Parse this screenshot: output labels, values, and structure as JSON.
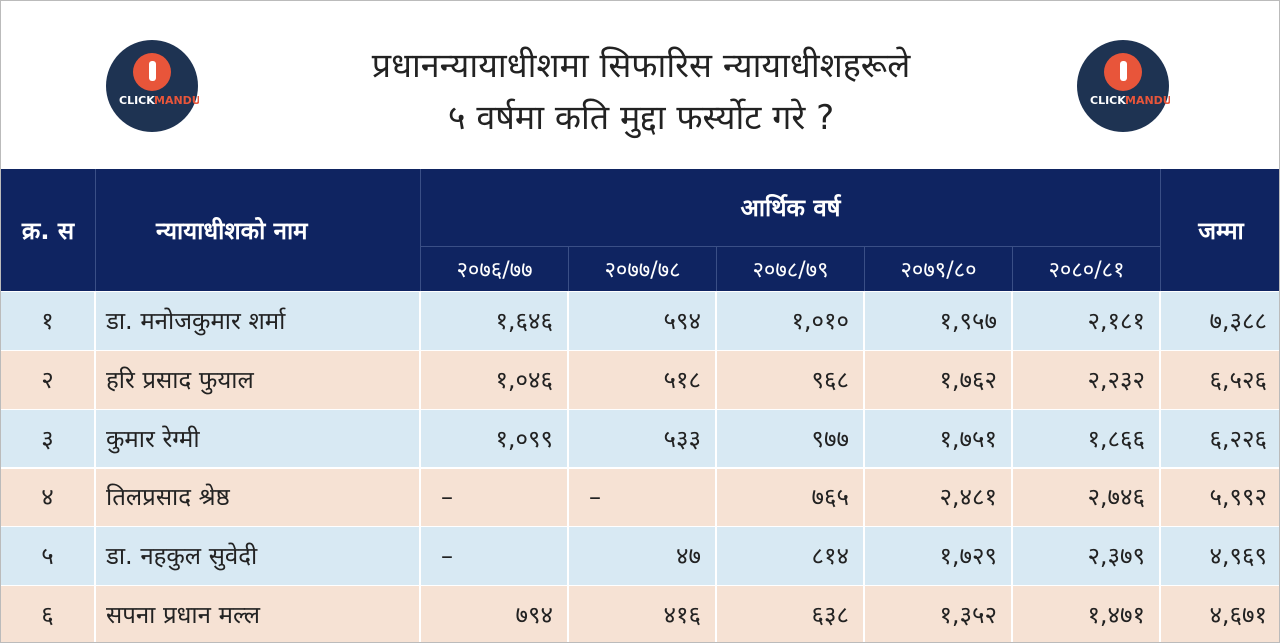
{
  "header": {
    "title": [
      "प्रधानन्यायाधीशमा सिफारिस न्यायाधीशहरूले",
      "५ वर्षमा कति मुद्दा फर्स्योट गरे ?"
    ],
    "logo": [
      "CLICK",
      "MANDU"
    ]
  },
  "table": {
    "columns": [
      "क्र. स",
      "न्यायाधीशको नाम",
      "आर्थिक वर्ष",
      "जम्मा"
    ],
    "years": [
      "२०७६/७७",
      "२०७७/७८",
      "२०७८/७९",
      "२०७९/८०",
      "२०८०/८१"
    ],
    "rows": [
      [
        "१",
        "डा. मनोजकुमार शर्मा",
        "१,६४६",
        "५९४",
        "१,०१०",
        "१,९५७",
        "२,१८१",
        "७,३८८"
      ],
      [
        "२",
        "हरि प्रसाद फुयाल",
        "१,०४६",
        "५१८",
        "९६८",
        "१,७६२",
        "२,२३२",
        "६,५२६"
      ],
      [
        "३",
        "कुमार रेग्मी",
        "१,०९९",
        "५३३",
        "९७७",
        "१,७५१",
        "१,८६६",
        "६,२२६"
      ],
      [
        "४",
        "तिलप्रसाद श्रेष्ठ",
        "–",
        "–",
        "७६५",
        "२,४८१",
        "२,७४६",
        "५,९९२"
      ],
      [
        "५",
        "डा. नहकुल सुवेदी",
        "–",
        "४७",
        "८१४",
        "१,७२९",
        "२,३७९",
        "४,९६९"
      ],
      [
        "६",
        "सपना प्रधान मल्ल",
        "७९४",
        "४१६",
        "६३८",
        "१,३५२",
        "१,४७१",
        "४,६७१"
      ]
    ]
  }
}
